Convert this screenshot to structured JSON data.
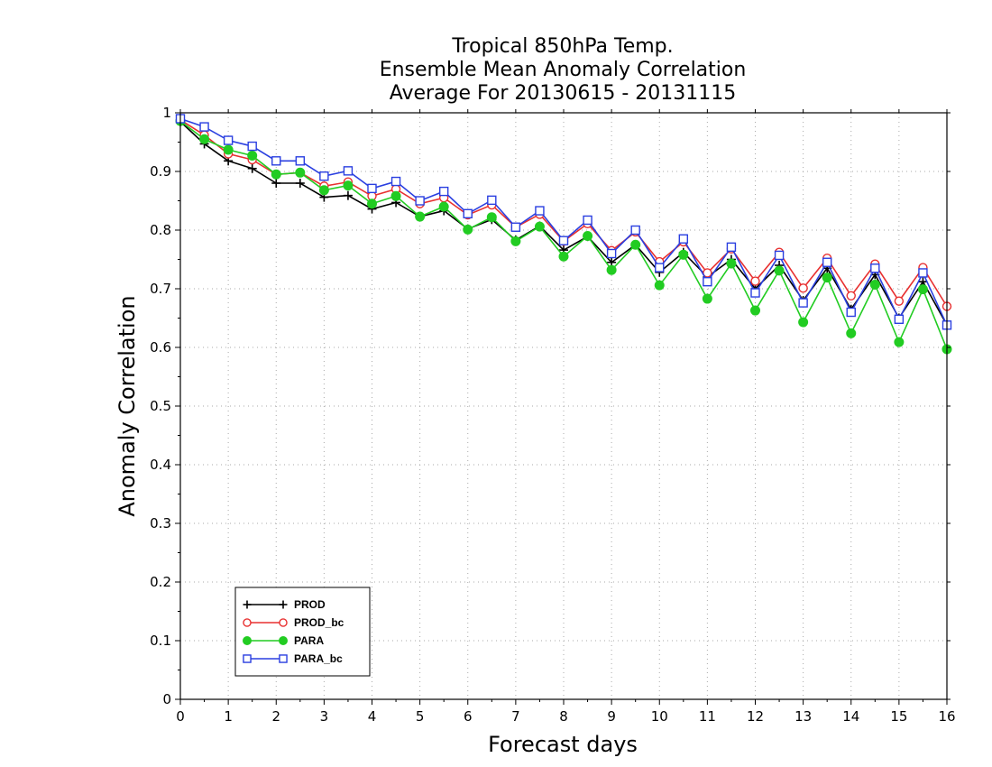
{
  "chart_data": {
    "type": "line",
    "title_lines": [
      "Tropical 850hPa Temp.",
      "Ensemble Mean Anomaly Correlation",
      "Average For 20130615 - 20131115"
    ],
    "xlabel": "Forecast days",
    "ylabel": "Anomaly Correlation",
    "xlim": [
      0,
      16
    ],
    "ylim": [
      0,
      1
    ],
    "x_ticks": [
      "0",
      "1",
      "2",
      "3",
      "4",
      "5",
      "6",
      "7",
      "8",
      "9",
      "10",
      "11",
      "12",
      "13",
      "14",
      "15",
      "16"
    ],
    "y_ticks": [
      "0",
      "0.1",
      "0.2",
      "0.3",
      "0.4",
      "0.5",
      "0.6",
      "0.7",
      "0.8",
      "0.9",
      "1"
    ],
    "grid": true,
    "legend_position": "bottom-left",
    "x": [
      0,
      0.5,
      1,
      1.5,
      2,
      2.5,
      3,
      3.5,
      4,
      4.5,
      5,
      5.5,
      6,
      6.5,
      7,
      7.5,
      8,
      8.5,
      9,
      9.5,
      10,
      10.5,
      11,
      11.5,
      12,
      12.5,
      13,
      13.5,
      14,
      14.5,
      15,
      15.5,
      16
    ],
    "series": [
      {
        "name": "PROD",
        "color": "#000000",
        "marker": "plus",
        "values": [
          0.985,
          0.947,
          0.918,
          0.905,
          0.88,
          0.88,
          0.856,
          0.859,
          0.836,
          0.847,
          0.823,
          0.833,
          0.802,
          0.818,
          0.783,
          0.807,
          0.766,
          0.789,
          0.745,
          0.775,
          0.728,
          0.762,
          0.72,
          0.75,
          0.7,
          0.74,
          0.68,
          0.735,
          0.665,
          0.724,
          0.65,
          0.712,
          0.638
        ]
      },
      {
        "name": "PROD_bc",
        "color": "#e83030",
        "marker": "circle-open",
        "values": [
          0.988,
          0.962,
          0.93,
          0.92,
          0.895,
          0.898,
          0.875,
          0.882,
          0.858,
          0.87,
          0.845,
          0.855,
          0.826,
          0.843,
          0.805,
          0.827,
          0.781,
          0.811,
          0.765,
          0.797,
          0.746,
          0.78,
          0.727,
          0.768,
          0.713,
          0.762,
          0.701,
          0.752,
          0.688,
          0.742,
          0.679,
          0.736,
          0.67
        ]
      },
      {
        "name": "PARA",
        "color": "#22cc22",
        "marker": "circle-filled",
        "values": [
          0.986,
          0.955,
          0.937,
          0.927,
          0.895,
          0.898,
          0.868,
          0.876,
          0.845,
          0.858,
          0.823,
          0.84,
          0.801,
          0.822,
          0.781,
          0.806,
          0.755,
          0.79,
          0.732,
          0.775,
          0.706,
          0.758,
          0.683,
          0.743,
          0.663,
          0.731,
          0.643,
          0.719,
          0.624,
          0.707,
          0.609,
          0.699,
          0.597
        ]
      },
      {
        "name": "PARA_bc",
        "color": "#2a3fe0",
        "marker": "square-open",
        "values": [
          0.99,
          0.976,
          0.953,
          0.943,
          0.918,
          0.918,
          0.892,
          0.901,
          0.871,
          0.883,
          0.85,
          0.866,
          0.828,
          0.851,
          0.805,
          0.833,
          0.782,
          0.817,
          0.76,
          0.8,
          0.736,
          0.785,
          0.712,
          0.771,
          0.693,
          0.757,
          0.676,
          0.745,
          0.66,
          0.735,
          0.648,
          0.727,
          0.638
        ]
      }
    ]
  }
}
